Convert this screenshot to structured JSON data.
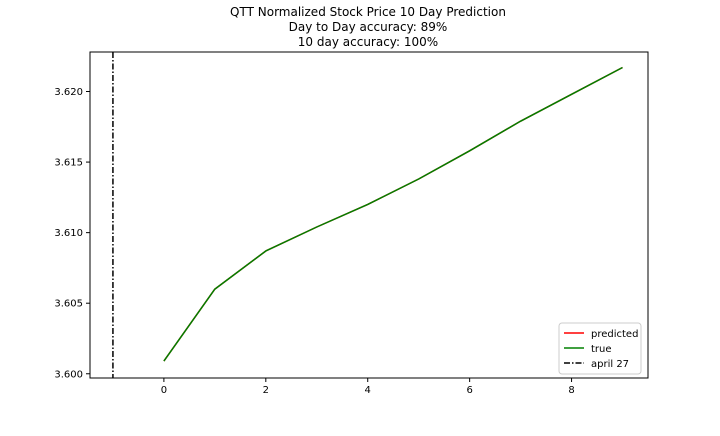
{
  "title_lines": [
    "QTT Normalized Stock Price 10 Day Prediction",
    "Day to Day accuracy: 89%",
    "10 day accuracy: 100%"
  ],
  "chart_data": {
    "type": "line",
    "title": "QTT Normalized Stock Price 10 Day Prediction\nDay to Day accuracy: 89%\n10 day accuracy: 100%",
    "xlabel": "",
    "ylabel": "",
    "xlim": [
      -1.45,
      9.5
    ],
    "ylim": [
      3.5997,
      3.6228
    ],
    "xticks": [
      0,
      2,
      4,
      6,
      8
    ],
    "xtick_labels": [
      "0",
      "2",
      "4",
      "6",
      "8"
    ],
    "yticks": [
      3.6,
      3.605,
      3.61,
      3.615,
      3.62
    ],
    "ytick_labels": [
      "3.600",
      "3.605",
      "3.610",
      "3.615",
      "3.620"
    ],
    "grid": false,
    "legend_placement": "lower-right",
    "series": [
      {
        "name": "predicted",
        "color": "#ff0000",
        "style": "solid",
        "x": [
          0,
          1,
          2,
          3,
          4,
          5,
          6,
          7,
          8,
          9
        ],
        "values": [
          3.6009,
          3.606,
          3.6087,
          3.6104,
          3.612,
          3.6138,
          3.6158,
          3.6179,
          3.6198,
          3.6217
        ]
      },
      {
        "name": "true",
        "color": "#008000",
        "style": "solid",
        "x": [
          0,
          1,
          2,
          3,
          4,
          5,
          6,
          7,
          8,
          9
        ],
        "values": [
          3.6009,
          3.606,
          3.6087,
          3.6104,
          3.612,
          3.6138,
          3.6158,
          3.6179,
          3.6198,
          3.6217
        ]
      }
    ],
    "vlines": [
      {
        "name": "april 27",
        "x": -1,
        "color": "#000000",
        "style": "dashdot"
      }
    ]
  }
}
